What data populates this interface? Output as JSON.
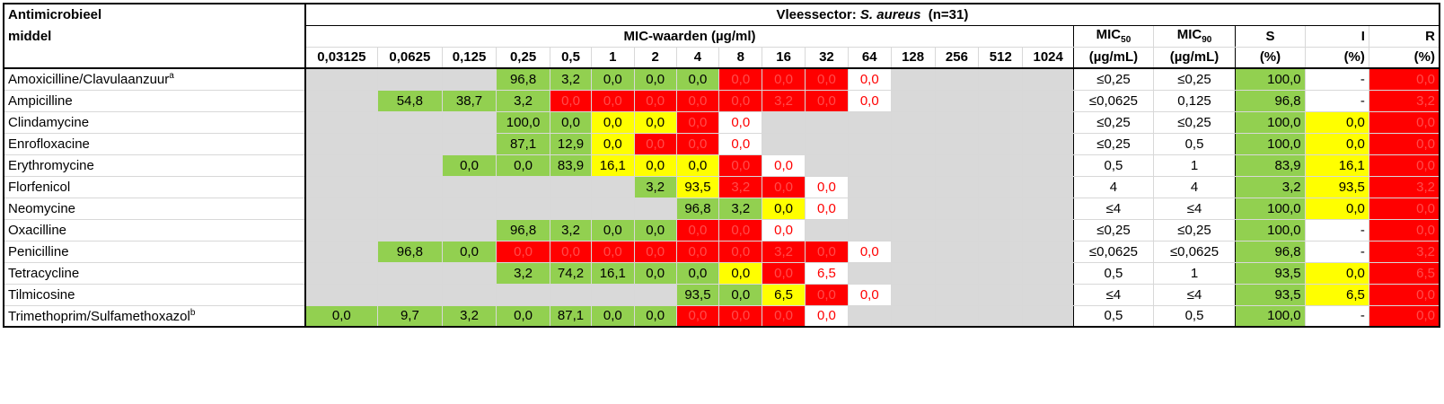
{
  "header": {
    "antimicrobial_label_1": "Antimicrobieel",
    "antimicrobial_label_2": "middel",
    "sector_title_prefix": "Vleessector: ",
    "sector_title_species": "S. aureus",
    "sector_title_suffix": "  (n=31)",
    "mic_values_title": "MIC-waarden (µg/ml)",
    "concentrations": [
      "0,03125",
      "0,0625",
      "0,125",
      "0,25",
      "0,5",
      "1",
      "2",
      "4",
      "8",
      "16",
      "32",
      "64",
      "128",
      "256",
      "512",
      "1024"
    ],
    "mic50_label": "MIC",
    "mic50_sub": "50",
    "mic90_label": "MIC",
    "mic90_sub": "90",
    "unit_label": "(µg/mL)",
    "s_label": "S",
    "i_label": "I",
    "r_label": "R",
    "pct_label": "(%)"
  },
  "rows": [
    {
      "name": "Amoxicilline/Clavulaanzuur",
      "sup": "a",
      "cells": [
        [
          "",
          "gray"
        ],
        [
          "",
          "gray"
        ],
        [
          "",
          "gray"
        ],
        [
          "96,8",
          "green"
        ],
        [
          "3,2",
          "green"
        ],
        [
          "0,0",
          "green"
        ],
        [
          "0,0",
          "green"
        ],
        [
          "0,0",
          "green"
        ],
        [
          "0,0",
          "red"
        ],
        [
          "0,0",
          "red"
        ],
        [
          "0,0",
          "red"
        ],
        [
          "0,0",
          "redtxt"
        ],
        [
          "",
          "gray"
        ],
        [
          "",
          "gray"
        ],
        [
          "",
          "gray"
        ],
        [
          "",
          "gray"
        ]
      ],
      "mic50": "≤0,25",
      "mic90": "≤0,25",
      "s": "100,0",
      "i": "-",
      "r": "0,0",
      "i_color": "white"
    },
    {
      "name": "Ampicilline",
      "sup": "",
      "cells": [
        [
          "",
          "gray"
        ],
        [
          "54,8",
          "green"
        ],
        [
          "38,7",
          "green"
        ],
        [
          "3,2",
          "green"
        ],
        [
          "0,0",
          "red"
        ],
        [
          "0,0",
          "red"
        ],
        [
          "0,0",
          "red"
        ],
        [
          "0,0",
          "red"
        ],
        [
          "0,0",
          "red"
        ],
        [
          "3,2",
          "red"
        ],
        [
          "0,0",
          "red"
        ],
        [
          "0,0",
          "redtxt"
        ],
        [
          "",
          "gray"
        ],
        [
          "",
          "gray"
        ],
        [
          "",
          "gray"
        ],
        [
          "",
          "gray"
        ]
      ],
      "mic50": "≤0,0625",
      "mic90": "0,125",
      "s": "96,8",
      "i": "-",
      "r": "3,2",
      "i_color": "white"
    },
    {
      "name": "Clindamycine",
      "sup": "",
      "cells": [
        [
          "",
          "gray"
        ],
        [
          "",
          "gray"
        ],
        [
          "",
          "gray"
        ],
        [
          "100,0",
          "green"
        ],
        [
          "0,0",
          "green"
        ],
        [
          "0,0",
          "yellow"
        ],
        [
          "0,0",
          "yellow"
        ],
        [
          "0,0",
          "red"
        ],
        [
          "0,0",
          "redtxt"
        ],
        [
          "",
          "gray"
        ],
        [
          "",
          "gray"
        ],
        [
          "",
          "gray"
        ],
        [
          "",
          "gray"
        ],
        [
          "",
          "gray"
        ],
        [
          "",
          "gray"
        ],
        [
          "",
          "gray"
        ]
      ],
      "mic50": "≤0,25",
      "mic90": "≤0,25",
      "s": "100,0",
      "i": "0,0",
      "r": "0,0",
      "i_color": "yellow"
    },
    {
      "name": "Enrofloxacine",
      "sup": "",
      "cells": [
        [
          "",
          "gray"
        ],
        [
          "",
          "gray"
        ],
        [
          "",
          "gray"
        ],
        [
          "87,1",
          "green"
        ],
        [
          "12,9",
          "green"
        ],
        [
          "0,0",
          "yellow"
        ],
        [
          "0,0",
          "red"
        ],
        [
          "0,0",
          "red"
        ],
        [
          "0,0",
          "redtxt"
        ],
        [
          "",
          "gray"
        ],
        [
          "",
          "gray"
        ],
        [
          "",
          "gray"
        ],
        [
          "",
          "gray"
        ],
        [
          "",
          "gray"
        ],
        [
          "",
          "gray"
        ],
        [
          "",
          "gray"
        ]
      ],
      "mic50": "≤0,25",
      "mic90": "0,5",
      "s": "100,0",
      "i": "0,0",
      "r": "0,0",
      "i_color": "yellow"
    },
    {
      "name": "Erythromycine",
      "sup": "",
      "cells": [
        [
          "",
          "gray"
        ],
        [
          "",
          "gray"
        ],
        [
          "0,0",
          "green"
        ],
        [
          "0,0",
          "green"
        ],
        [
          "83,9",
          "green"
        ],
        [
          "16,1",
          "yellow"
        ],
        [
          "0,0",
          "yellow"
        ],
        [
          "0,0",
          "yellow"
        ],
        [
          "0,0",
          "red"
        ],
        [
          "0,0",
          "redtxt"
        ],
        [
          "",
          "gray"
        ],
        [
          "",
          "gray"
        ],
        [
          "",
          "gray"
        ],
        [
          "",
          "gray"
        ],
        [
          "",
          "gray"
        ],
        [
          "",
          "gray"
        ]
      ],
      "mic50": "0,5",
      "mic90": "1",
      "s": "83,9",
      "i": "16,1",
      "r": "0,0",
      "i_color": "yellow"
    },
    {
      "name": "Florfenicol",
      "sup": "",
      "cells": [
        [
          "",
          "gray"
        ],
        [
          "",
          "gray"
        ],
        [
          "",
          "gray"
        ],
        [
          "",
          "gray"
        ],
        [
          "",
          "gray"
        ],
        [
          "",
          "gray"
        ],
        [
          "3,2",
          "green"
        ],
        [
          "93,5",
          "yellow"
        ],
        [
          "3,2",
          "red"
        ],
        [
          "0,0",
          "red"
        ],
        [
          "0,0",
          "redtxt"
        ],
        [
          "",
          "gray"
        ],
        [
          "",
          "gray"
        ],
        [
          "",
          "gray"
        ],
        [
          "",
          "gray"
        ],
        [
          "",
          "gray"
        ]
      ],
      "mic50": "4",
      "mic90": "4",
      "s": "3,2",
      "i": "93,5",
      "r": "3,2",
      "i_color": "yellow"
    },
    {
      "name": "Neomycine",
      "sup": "",
      "cells": [
        [
          "",
          "gray"
        ],
        [
          "",
          "gray"
        ],
        [
          "",
          "gray"
        ],
        [
          "",
          "gray"
        ],
        [
          "",
          "gray"
        ],
        [
          "",
          "gray"
        ],
        [
          "",
          "gray"
        ],
        [
          "96,8",
          "green"
        ],
        [
          "3,2",
          "green"
        ],
        [
          "0,0",
          "yellow"
        ],
        [
          "0,0",
          "redtxt"
        ],
        [
          "",
          "gray"
        ],
        [
          "",
          "gray"
        ],
        [
          "",
          "gray"
        ],
        [
          "",
          "gray"
        ],
        [
          "",
          "gray"
        ]
      ],
      "mic50": "≤4",
      "mic90": "≤4",
      "s": "100,0",
      "i": "0,0",
      "r": "0,0",
      "i_color": "yellow"
    },
    {
      "name": "Oxacilline",
      "sup": "",
      "cells": [
        [
          "",
          "gray"
        ],
        [
          "",
          "gray"
        ],
        [
          "",
          "gray"
        ],
        [
          "96,8",
          "green"
        ],
        [
          "3,2",
          "green"
        ],
        [
          "0,0",
          "green"
        ],
        [
          "0,0",
          "green"
        ],
        [
          "0,0",
          "red"
        ],
        [
          "0,0",
          "red"
        ],
        [
          "0,0",
          "redtxt"
        ],
        [
          "",
          "gray"
        ],
        [
          "",
          "gray"
        ],
        [
          "",
          "gray"
        ],
        [
          "",
          "gray"
        ],
        [
          "",
          "gray"
        ],
        [
          "",
          "gray"
        ]
      ],
      "mic50": "≤0,25",
      "mic90": "≤0,25",
      "s": "100,0",
      "i": "-",
      "r": "0,0",
      "i_color": "white"
    },
    {
      "name": "Penicilline",
      "sup": "",
      "cells": [
        [
          "",
          "gray"
        ],
        [
          "96,8",
          "green"
        ],
        [
          "0,0",
          "green"
        ],
        [
          "0,0",
          "red"
        ],
        [
          "0,0",
          "red"
        ],
        [
          "0,0",
          "red"
        ],
        [
          "0,0",
          "red"
        ],
        [
          "0,0",
          "red"
        ],
        [
          "0,0",
          "red"
        ],
        [
          "3,2",
          "red"
        ],
        [
          "0,0",
          "red"
        ],
        [
          "0,0",
          "redtxt"
        ],
        [
          "",
          "gray"
        ],
        [
          "",
          "gray"
        ],
        [
          "",
          "gray"
        ],
        [
          "",
          "gray"
        ]
      ],
      "mic50": "≤0,0625",
      "mic90": "≤0,0625",
      "s": "96,8",
      "i": "-",
      "r": "3,2",
      "i_color": "white"
    },
    {
      "name": "Tetracycline",
      "sup": "",
      "cells": [
        [
          "",
          "gray"
        ],
        [
          "",
          "gray"
        ],
        [
          "",
          "gray"
        ],
        [
          "3,2",
          "green"
        ],
        [
          "74,2",
          "green"
        ],
        [
          "16,1",
          "green"
        ],
        [
          "0,0",
          "green"
        ],
        [
          "0,0",
          "green"
        ],
        [
          "0,0",
          "yellow"
        ],
        [
          "0,0",
          "red"
        ],
        [
          "6,5",
          "redtxt"
        ],
        [
          "",
          "gray"
        ],
        [
          "",
          "gray"
        ],
        [
          "",
          "gray"
        ],
        [
          "",
          "gray"
        ],
        [
          "",
          "gray"
        ]
      ],
      "mic50": "0,5",
      "mic90": "1",
      "s": "93,5",
      "i": "0,0",
      "r": "6,5",
      "i_color": "yellow"
    },
    {
      "name": "Tilmicosine",
      "sup": "",
      "cells": [
        [
          "",
          "gray"
        ],
        [
          "",
          "gray"
        ],
        [
          "",
          "gray"
        ],
        [
          "",
          "gray"
        ],
        [
          "",
          "gray"
        ],
        [
          "",
          "gray"
        ],
        [
          "",
          "gray"
        ],
        [
          "93,5",
          "green"
        ],
        [
          "0,0",
          "green"
        ],
        [
          "6,5",
          "yellow"
        ],
        [
          "0,0",
          "red"
        ],
        [
          "0,0",
          "redtxt"
        ],
        [
          "",
          "gray"
        ],
        [
          "",
          "gray"
        ],
        [
          "",
          "gray"
        ],
        [
          "",
          "gray"
        ]
      ],
      "mic50": "≤4",
      "mic90": "≤4",
      "s": "93,5",
      "i": "6,5",
      "r": "0,0",
      "i_color": "yellow"
    },
    {
      "name": "Trimethoprim/Sulfamethoxazol",
      "sup": "b",
      "cells": [
        [
          "0,0",
          "green"
        ],
        [
          "9,7",
          "green"
        ],
        [
          "3,2",
          "green"
        ],
        [
          "0,0",
          "green"
        ],
        [
          "87,1",
          "green"
        ],
        [
          "0,0",
          "green"
        ],
        [
          "0,0",
          "green"
        ],
        [
          "0,0",
          "red"
        ],
        [
          "0,0",
          "red"
        ],
        [
          "0,0",
          "red"
        ],
        [
          "0,0",
          "redtxt"
        ],
        [
          "",
          "gray"
        ],
        [
          "",
          "gray"
        ],
        [
          "",
          "gray"
        ],
        [
          "",
          "gray"
        ],
        [
          "",
          "gray"
        ]
      ],
      "mic50": "0,5",
      "mic90": "0,5",
      "s": "100,0",
      "i": "-",
      "r": "0,0",
      "i_color": "white"
    }
  ]
}
